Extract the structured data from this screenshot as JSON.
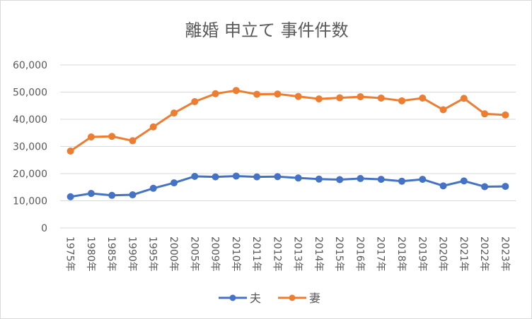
{
  "chart_data": {
    "type": "line",
    "title": "離婚 申立て 事件件数",
    "xlabel": "",
    "ylabel": "",
    "ylim": [
      0,
      60000
    ],
    "yticks": [
      "0",
      "10,000",
      "20,000",
      "30,000",
      "40,000",
      "50,000",
      "60,000"
    ],
    "grid": true,
    "legend": "bottom",
    "categories": [
      "1975年",
      "1980年",
      "1985年",
      "1990年",
      "1995年",
      "2000年",
      "2005年",
      "2009年",
      "2010年",
      "2011年",
      "2012年",
      "2013年",
      "2014年",
      "2015年",
      "2016年",
      "2017年",
      "2018年",
      "2019年",
      "2020年",
      "2021年",
      "2022年",
      "2023年"
    ],
    "series": [
      {
        "name": "夫",
        "color": "#4472c4",
        "values": [
          11500,
          12700,
          12000,
          12200,
          14600,
          16600,
          19000,
          18800,
          19100,
          18800,
          18900,
          18400,
          18000,
          17800,
          18200,
          17900,
          17200,
          17900,
          15500,
          17300,
          15200,
          15300
        ]
      },
      {
        "name": "妻",
        "color": "#ed7d31",
        "values": [
          28300,
          33500,
          33700,
          32100,
          37200,
          42300,
          46500,
          49400,
          50600,
          49200,
          49300,
          48400,
          47500,
          47900,
          48300,
          47800,
          46800,
          47800,
          43500,
          47700,
          42000,
          41600
        ]
      }
    ]
  }
}
